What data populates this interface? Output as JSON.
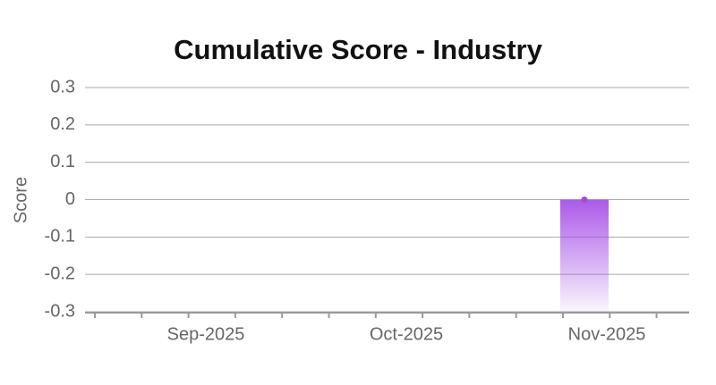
{
  "chart_data": {
    "type": "area",
    "title": "Cumulative Score - Industry",
    "y_label": "Score",
    "categories": [
      "Sep-2025",
      "Oct-2025",
      "Nov-2025"
    ],
    "series": [
      {
        "name": "Industry",
        "color": "#a347e6",
        "values": [
          null,
          null,
          0
        ]
      }
    ],
    "ylim": [
      -0.3,
      0.3
    ],
    "yticks": [
      0.3,
      0.2,
      0.1,
      0,
      -0.1,
      -0.2,
      -0.3
    ],
    "grid": true
  }
}
